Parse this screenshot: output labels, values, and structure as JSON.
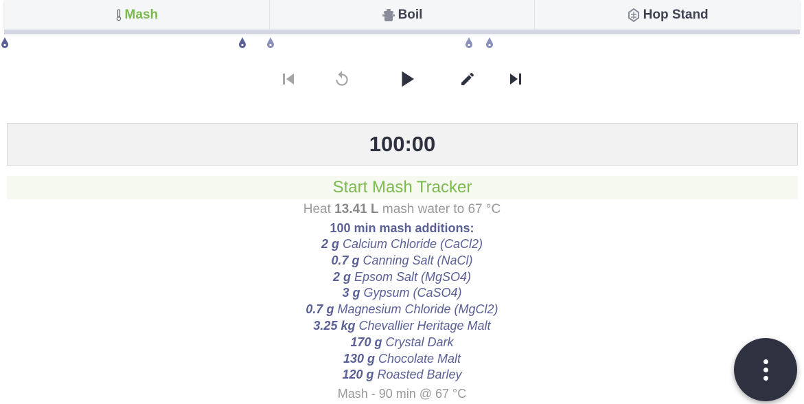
{
  "tabs": [
    {
      "label": "Mash",
      "icon": "thermometer-icon",
      "active": true
    },
    {
      "label": "Boil",
      "icon": "pot-icon"
    },
    {
      "label": "Hop Stand",
      "icon": "hop-icon"
    }
  ],
  "timer": "100:00",
  "start_label": "Start Mash Tracker",
  "heat": {
    "prefix": "Heat",
    "amount": "13.41 L",
    "suffix": "mash water to 67 °C"
  },
  "additions_header": "100 min mash additions:",
  "additions": [
    {
      "qty": "2 g",
      "name": "Calcium Chloride (CaCl2)"
    },
    {
      "qty": "0.7 g",
      "name": "Canning Salt (NaCl)"
    },
    {
      "qty": "2 g",
      "name": "Epsom Salt (MgSO4)"
    },
    {
      "qty": "3 g",
      "name": "Gypsum (CaSO4)"
    },
    {
      "qty": "0.7 g",
      "name": "Magnesium Chloride (MgCl2)"
    },
    {
      "qty": "3.25 kg",
      "name": "Chevallier Heritage Malt"
    },
    {
      "qty": "170 g",
      "name": "Crystal Dark"
    },
    {
      "qty": "130 g",
      "name": "Chocolate Malt"
    },
    {
      "qty": "120 g",
      "name": "Roasted Barley"
    }
  ],
  "step": "Mash - 90 min @ 67 °C",
  "colors": {
    "accent": "#7cba4f",
    "additions": "#5a6096",
    "fab": "#2e3140"
  }
}
